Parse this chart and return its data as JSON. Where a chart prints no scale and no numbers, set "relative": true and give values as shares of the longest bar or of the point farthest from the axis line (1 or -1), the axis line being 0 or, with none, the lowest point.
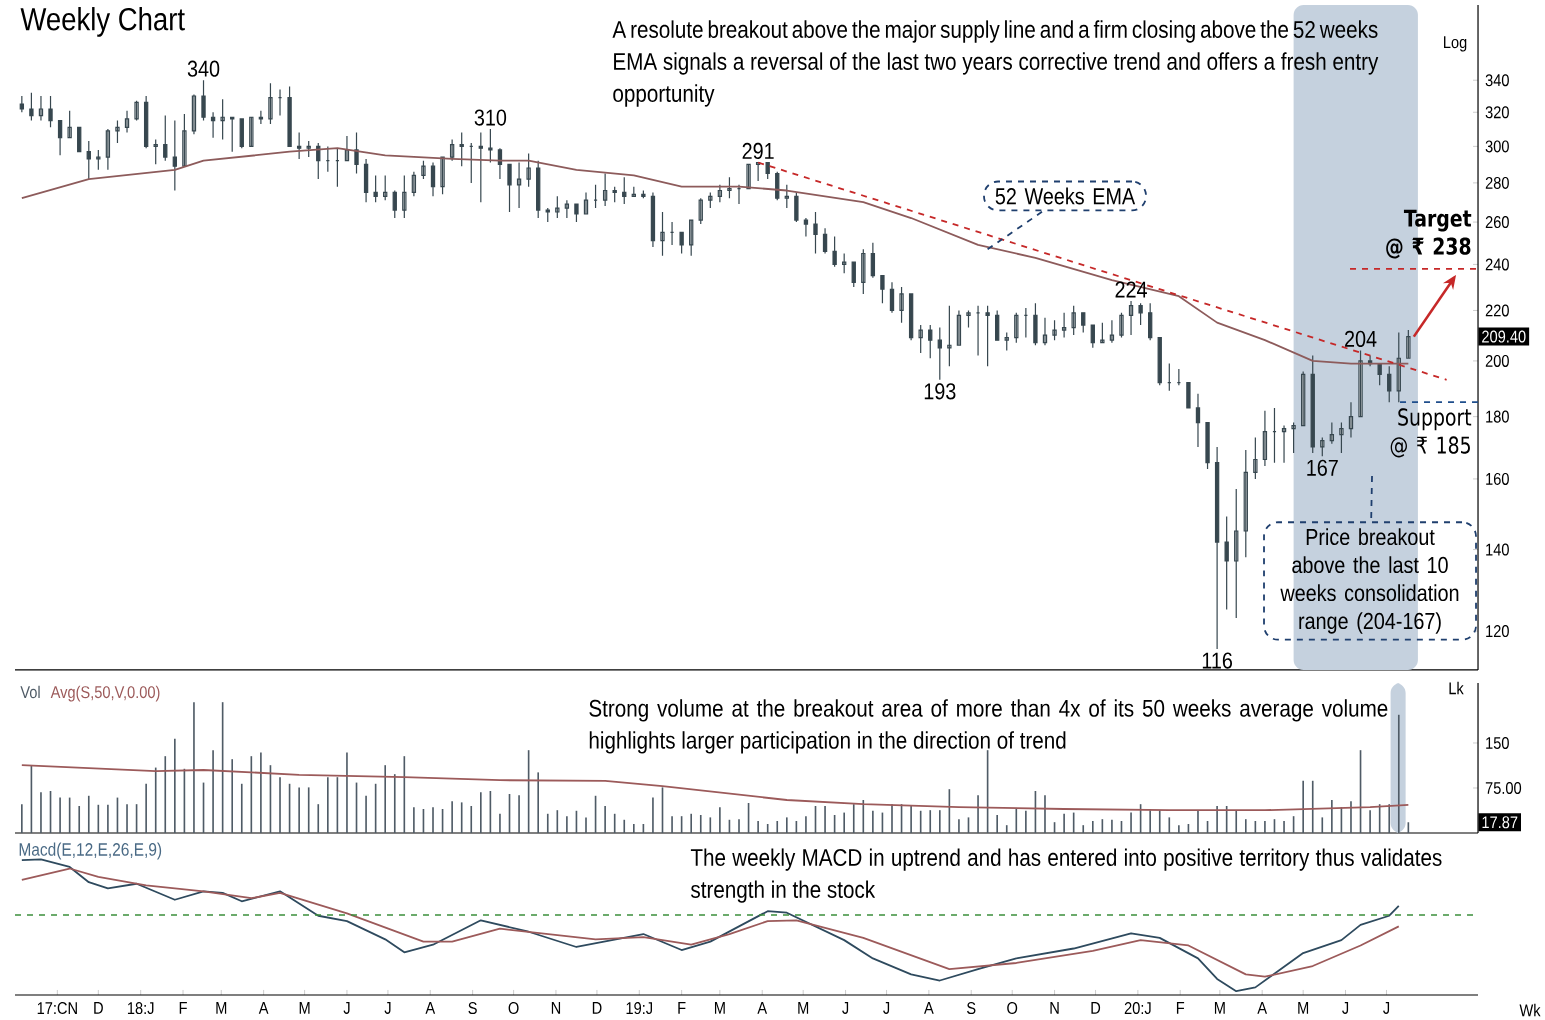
{
  "chart_data": [
    {
      "type": "candlestick",
      "title": "Weekly Chart",
      "log": true,
      "tick_labels": "y",
      "xlim": [
        "2017-10-01",
        "2020-09-06"
      ],
      "ylim": [
        111.5,
        392
      ],
      "yticks": [
        120,
        140,
        160,
        180,
        200,
        220,
        240,
        260,
        280,
        300,
        320,
        340
      ],
      "series": [
        {
          "type": "candlestick",
          "color": "#37474f",
          "x": [
            "2017-10-06",
            "2017-10-13",
            "2017-10-20",
            "2017-10-27",
            "2017-11-03",
            "2017-11-10",
            "2017-11-17",
            "2017-11-24",
            "2017-12-01",
            "2017-12-08",
            "2017-12-15",
            "2017-12-22",
            "2017-12-29",
            "2018-01-05",
            "2018-01-12",
            "2018-01-19",
            "2018-01-26",
            "2018-02-02",
            "2018-02-09",
            "2018-02-16",
            "2018-02-23",
            "2018-03-02",
            "2018-03-09",
            "2018-03-16",
            "2018-03-23",
            "2018-03-30",
            "2018-04-06",
            "2018-04-13",
            "2018-04-20",
            "2018-04-27",
            "2018-05-04",
            "2018-05-11",
            "2018-05-18",
            "2018-05-25",
            "2018-06-01",
            "2018-06-08",
            "2018-06-15",
            "2018-06-22",
            "2018-06-29",
            "2018-07-06",
            "2018-07-13",
            "2018-07-20",
            "2018-07-27",
            "2018-08-03",
            "2018-08-10",
            "2018-08-17",
            "2018-08-24",
            "2018-08-31",
            "2018-09-07",
            "2018-09-14",
            "2018-09-21",
            "2018-09-28",
            "2018-10-05",
            "2018-10-12",
            "2018-10-19",
            "2018-10-26",
            "2018-11-02",
            "2018-11-09",
            "2018-11-16",
            "2018-11-23",
            "2018-11-30",
            "2018-12-07",
            "2018-12-14",
            "2018-12-21",
            "2018-12-28",
            "2019-01-04",
            "2019-01-11",
            "2019-01-18",
            "2019-01-25",
            "2019-02-01",
            "2019-02-08",
            "2019-02-15",
            "2019-02-22",
            "2019-03-01",
            "2019-03-08",
            "2019-03-15",
            "2019-03-22",
            "2019-03-29",
            "2019-04-05",
            "2019-04-12",
            "2019-04-19",
            "2019-04-26",
            "2019-05-03",
            "2019-05-10",
            "2019-05-17",
            "2019-05-24",
            "2019-05-31",
            "2019-06-07",
            "2019-06-14",
            "2019-06-21",
            "2019-06-28",
            "2019-07-05",
            "2019-07-12",
            "2019-07-19",
            "2019-07-26",
            "2019-08-02",
            "2019-08-09",
            "2019-08-16",
            "2019-08-23",
            "2019-08-30",
            "2019-09-06",
            "2019-09-13",
            "2019-09-20",
            "2019-09-27",
            "2019-10-04",
            "2019-10-11",
            "2019-10-18",
            "2019-10-25",
            "2019-11-01",
            "2019-11-08",
            "2019-11-15",
            "2019-11-22",
            "2019-11-29",
            "2019-12-06",
            "2019-12-13",
            "2019-12-20",
            "2019-12-27",
            "2020-01-03",
            "2020-01-10",
            "2020-01-17",
            "2020-01-24",
            "2020-01-31",
            "2020-02-07",
            "2020-02-14",
            "2020-02-21",
            "2020-02-28",
            "2020-03-06",
            "2020-03-13",
            "2020-03-20",
            "2020-03-27",
            "2020-04-03",
            "2020-04-10",
            "2020-04-17",
            "2020-04-24",
            "2020-05-01",
            "2020-05-08",
            "2020-05-15",
            "2020-05-22",
            "2020-05-29",
            "2020-06-05",
            "2020-06-12",
            "2020-06-19",
            "2020-06-26",
            "2020-07-03",
            "2020-07-10",
            "2020-07-17"
          ],
          "ohlc": [
            [
              325,
              330,
              320,
              322
            ],
            [
              322,
              332,
              315,
              318
            ],
            [
              318,
              330,
              315,
              322
            ],
            [
              322,
              330,
              311,
              315
            ],
            [
              315,
              315,
              295,
              305
            ],
            [
              305,
              321,
              305,
              311
            ],
            [
              311,
              311,
              297,
              297
            ],
            [
              297,
              303,
              282,
              293
            ],
            [
              293,
              298,
              287,
              294
            ],
            [
              294,
              310,
              287,
              309
            ],
            [
              309,
              315,
              302,
              311
            ],
            [
              311,
              321,
              308,
              316
            ],
            [
              316,
              327,
              315,
              326
            ],
            [
              326,
              330,
              299,
              300
            ],
            [
              300,
              304,
              290,
              301
            ],
            [
              301,
              318,
              292,
              294
            ],
            [
              294,
              315,
              276,
              289
            ],
            [
              289,
              319,
              289,
              309
            ],
            [
              309,
              331,
              307,
              330
            ],
            [
              330,
              340,
              315,
              317
            ],
            [
              317,
              320,
              305,
              315
            ],
            [
              315,
              328,
              304,
              317
            ],
            [
              317,
              317,
              297,
              316
            ],
            [
              316,
              316,
              299,
              300
            ],
            [
              300,
              317,
              300,
              317
            ],
            [
              317,
              321,
              313,
              316
            ],
            [
              316,
              338,
              313,
              329
            ],
            [
              329,
              334,
              318,
              329
            ],
            [
              329,
              336,
              300,
              300
            ],
            [
              300,
              308,
              293,
              299
            ],
            [
              299,
              303,
              294,
              300
            ],
            [
              300,
              302,
              282,
              292
            ],
            [
              292,
              300,
              286,
              292
            ],
            [
              292,
              299,
              278,
              292
            ],
            [
              292,
              306,
              292,
              298
            ],
            [
              298,
              308,
              285,
              290
            ],
            [
              290,
              293,
              270,
              275
            ],
            [
              275,
              284,
              270,
              273
            ],
            [
              273,
              284,
              271,
              275
            ],
            [
              275,
              276,
              262,
              266
            ],
            [
              266,
              284,
              262,
              275
            ],
            [
              275,
              286,
              273,
              284
            ],
            [
              284,
              292,
              282,
              289
            ],
            [
              289,
              291,
              273,
              278
            ],
            [
              278,
              294,
              274,
              294
            ],
            [
              294,
              304,
              292,
              301
            ],
            [
              301,
              308,
              289,
              300
            ],
            [
              300,
              302,
              280,
              300
            ],
            [
              300,
              308,
              270,
              299
            ],
            [
              299,
              310,
              291,
              298
            ],
            [
              298,
              299,
              282,
              290
            ],
            [
              290,
              290,
              265,
              279
            ],
            [
              279,
              291,
              267,
              282
            ],
            [
              282,
              296,
              278,
              288
            ],
            [
              288,
              292,
              262,
              266
            ],
            [
              266,
              267,
              260,
              265
            ],
            [
              265,
              273,
              262,
              267
            ],
            [
              267,
              271,
              262,
              269
            ],
            [
              269,
              269,
              260,
              264
            ],
            [
              264,
              275,
              264,
              271
            ],
            [
              271,
              279,
              267,
              271
            ],
            [
              271,
              285,
              268,
              276
            ],
            [
              276,
              278,
              270,
              275
            ],
            [
              275,
              283,
              269,
              273
            ],
            [
              273,
              278,
              273,
              274
            ],
            [
              274,
              276,
              272,
              273
            ],
            [
              273,
              275,
              248,
              251
            ],
            [
              251,
              265,
              244,
              255
            ],
            [
              255,
              260,
              249,
              255
            ],
            [
              255,
              255,
              245,
              249
            ],
            [
              249,
              261,
              244,
              261
            ],
            [
              261,
              272,
              259,
              271
            ],
            [
              271,
              275,
              267,
              273
            ],
            [
              273,
              279,
              270,
              276
            ],
            [
              276,
              283,
              272,
              277
            ],
            [
              277,
              279,
              269,
              277
            ],
            [
              277,
              290,
              277,
              290
            ],
            [
              290,
              291,
              281,
              291
            ],
            [
              291,
              291,
              282,
              285
            ],
            [
              285,
              286,
              271,
              272
            ],
            [
              272,
              279,
              267,
              273
            ],
            [
              273,
              275,
              260,
              261
            ],
            [
              261,
              262,
              253,
              259
            ],
            [
              259,
              265,
              245,
              254
            ],
            [
              254,
              257,
              245,
              246
            ],
            [
              246,
              253,
              239,
              240
            ],
            [
              240,
              245,
              236,
              241
            ],
            [
              241,
              241,
              230,
              232
            ],
            [
              232,
              247,
              227,
              245
            ],
            [
              245,
              250,
              234,
              235
            ],
            [
              235,
              235,
              223,
              229
            ],
            [
              229,
              232,
              219,
              220
            ],
            [
              220,
              230,
              215,
              227
            ],
            [
              227,
              227,
              208,
              209
            ],
            [
              209,
              214,
              203,
              212
            ],
            [
              212,
              214,
              201,
              208
            ],
            [
              208,
              213,
              193,
              205
            ],
            [
              205,
              222,
              198,
              206
            ],
            [
              206,
              220,
              206,
              218
            ],
            [
              218,
              220,
              213,
              219
            ],
            [
              219,
              222,
              202,
              219
            ],
            [
              219,
              222,
              198,
              218
            ],
            [
              218,
              220,
              208,
              208
            ],
            [
              208,
              211,
              204,
              209
            ],
            [
              209,
              219,
              207,
              218
            ],
            [
              218,
              221,
              209,
              218
            ],
            [
              218,
              223,
              206,
              207
            ],
            [
              207,
              217,
              206,
              210
            ],
            [
              210,
              216,
              208,
              212
            ],
            [
              212,
              219,
              209,
              213
            ],
            [
              213,
              222,
              210,
              219
            ],
            [
              219,
              219,
              211,
              214
            ],
            [
              214,
              214,
              205,
              207
            ],
            [
              207,
              215,
              207,
              208
            ],
            [
              208,
              216,
              207,
              210
            ],
            [
              210,
              219,
              209,
              218
            ],
            [
              218,
              224,
              210,
              222
            ],
            [
              222,
              223,
              214,
              219
            ],
            [
              219,
              223,
              208,
              209
            ],
            [
              209,
              209,
              191,
              192
            ],
            [
              192,
              199,
              189,
              192
            ],
            [
              192,
              197,
              191,
              192
            ],
            [
              192,
              192,
              183,
              183
            ],
            [
              183,
              188,
              170,
              178
            ],
            [
              178,
              178,
              163,
              165
            ],
            [
              165,
              170,
              116,
              142
            ],
            [
              142,
              149,
              125,
              137
            ],
            [
              137,
              157,
              123,
              145
            ],
            [
              145,
              169,
              138,
              162
            ],
            [
              162,
              173,
              160,
              166
            ],
            [
              166,
              182,
              164,
              175
            ],
            [
              175,
              183,
              165,
              175
            ],
            [
              175,
              177,
              165,
              176
            ],
            [
              176,
              178,
              168,
              177
            ],
            [
              177,
              196,
              177,
              195
            ],
            [
              195,
              202,
              168,
              170
            ],
            [
              170,
              173,
              167,
              172
            ],
            [
              172,
              178,
              171,
              174
            ],
            [
              174,
              178,
              168,
              176
            ],
            [
              176,
              185,
              173,
              180
            ],
            [
              180,
              204,
              180,
              200
            ],
            [
              200,
              202,
              198,
              199
            ],
            [
              199,
              199,
              191,
              195
            ],
            [
              195,
              198,
              185,
              189
            ],
            [
              189,
              211,
              185,
              201
            ],
            [
              201,
              212,
              201,
              209.4
            ]
          ]
        },
        {
          "type": "line",
          "color": "#8d5b5b",
          "x": [
            "2017-10-06",
            "2017-11-24",
            "2018-01-26",
            "2018-02-16",
            "2018-04-20",
            "2018-05-25",
            "2018-06-29",
            "2018-08-17",
            "2018-09-21",
            "2018-10-12",
            "2018-11-16",
            "2018-12-28",
            "2019-02-01",
            "2019-03-15",
            "2019-04-19",
            "2019-06-14",
            "2019-07-19",
            "2019-09-06",
            "2019-10-18",
            "2019-12-13",
            "2020-01-31",
            "2020-02-28",
            "2020-04-03",
            "2020-05-08",
            "2020-06-05",
            "2020-07-17"
          ],
          "values": [
            272,
            282,
            287,
            292,
            297,
            299,
            295,
            293,
            292,
            292,
            287,
            284,
            278,
            278,
            276,
            270,
            262,
            249,
            243,
            233,
            226,
            215,
            208,
            200,
            199,
            199
          ]
        },
        {
          "type": "line",
          "color": "#c62828",
          "line_style": "dashed",
          "x": [
            "2019-03-29",
            "2020-08-14"
          ],
          "values": [
            291,
            193
          ]
        }
      ],
      "ref_lines": [
        {
          "axis": "y",
          "value": 238,
          "label": "Target @ ₹ 238",
          "color": "#c62828",
          "line_style": "dashed"
        },
        {
          "axis": "y",
          "value": 185,
          "label": "Support @ ₹ 185",
          "color": "#1f4e8c",
          "line_style": "dashed"
        }
      ],
      "bands": [
        {
          "axis": "x",
          "from": "2020-04-24",
          "to": "2020-07-24",
          "color": "#c5d1de"
        }
      ],
      "annotations": [
        "A resolute breakout above the major supply line and a firm closing above the 52 weeks EMA signals a reversal of the last two years corrective trend and offers a fresh entry opportunity",
        {
          "text": "340",
          "x": "2018-02-16",
          "y": 340
        },
        {
          "text": "310",
          "x": "2018-09-14",
          "y": 310
        },
        {
          "text": "291",
          "x": "2019-03-29",
          "y": 291
        },
        {
          "text": "193",
          "x": "2019-08-09",
          "y": 193
        },
        {
          "text": "224",
          "x": "2019-12-27",
          "y": 224
        },
        {
          "text": "116",
          "x": "2020-02-28",
          "y": 116
        },
        {
          "text": "204",
          "x": "2020-06-12",
          "y": 204
        },
        {
          "text": "167",
          "x": "2020-05-15",
          "y": 167
        },
        {
          "text": "52 Weeks EMA",
          "x": "2019-09-13",
          "y": 247
        },
        "Price breakout above the last 10 weeks consolidation range (204-167)",
        "209.40",
        "Log"
      ]
    },
    {
      "type": "bar",
      "tick_labels": "y",
      "legend": "top left",
      "ylabel": "Lk",
      "xlim": [
        "2017-10-01",
        "2020-09-06"
      ],
      "ylim": [
        0,
        250
      ],
      "yticks": [
        {
          "value": 75,
          "label": "75.00"
        },
        150
      ],
      "x": [
        "2017-10-06",
        "2017-10-13",
        "2017-10-20",
        "2017-10-27",
        "2017-11-03",
        "2017-11-10",
        "2017-11-17",
        "2017-11-24",
        "2017-12-01",
        "2017-12-08",
        "2017-12-15",
        "2017-12-22",
        "2017-12-29",
        "2018-01-05",
        "2018-01-12",
        "2018-01-19",
        "2018-01-26",
        "2018-02-02",
        "2018-02-09",
        "2018-02-16",
        "2018-02-23",
        "2018-03-02",
        "2018-03-09",
        "2018-03-16",
        "2018-03-23",
        "2018-03-30",
        "2018-04-06",
        "2018-04-13",
        "2018-04-20",
        "2018-04-27",
        "2018-05-04",
        "2018-05-11",
        "2018-05-18",
        "2018-05-25",
        "2018-06-01",
        "2018-06-08",
        "2018-06-15",
        "2018-06-22",
        "2018-06-29",
        "2018-07-06",
        "2018-07-13",
        "2018-07-20",
        "2018-07-27",
        "2018-08-03",
        "2018-08-10",
        "2018-08-17",
        "2018-08-24",
        "2018-08-31",
        "2018-09-07",
        "2018-09-14",
        "2018-09-21",
        "2018-09-28",
        "2018-10-05",
        "2018-10-12",
        "2018-10-19",
        "2018-10-26",
        "2018-11-02",
        "2018-11-09",
        "2018-11-16",
        "2018-11-23",
        "2018-11-30",
        "2018-12-07",
        "2018-12-14",
        "2018-12-21",
        "2018-12-28",
        "2019-01-04",
        "2019-01-11",
        "2019-01-18",
        "2019-01-25",
        "2019-02-01",
        "2019-02-08",
        "2019-02-15",
        "2019-02-22",
        "2019-03-01",
        "2019-03-08",
        "2019-03-15",
        "2019-03-22",
        "2019-03-29",
        "2019-04-05",
        "2019-04-12",
        "2019-04-19",
        "2019-04-26",
        "2019-05-03",
        "2019-05-10",
        "2019-05-17",
        "2019-05-24",
        "2019-05-31",
        "2019-06-07",
        "2019-06-14",
        "2019-06-21",
        "2019-06-28",
        "2019-07-05",
        "2019-07-12",
        "2019-07-19",
        "2019-07-26",
        "2019-08-02",
        "2019-08-09",
        "2019-08-16",
        "2019-08-23",
        "2019-08-30",
        "2019-09-06",
        "2019-09-13",
        "2019-09-20",
        "2019-09-27",
        "2019-10-04",
        "2019-10-11",
        "2019-10-18",
        "2019-10-25",
        "2019-11-01",
        "2019-11-08",
        "2019-11-15",
        "2019-11-22",
        "2019-11-29",
        "2019-12-06",
        "2019-12-13",
        "2019-12-20",
        "2019-12-27",
        "2020-01-03",
        "2020-01-10",
        "2020-01-17",
        "2020-01-24",
        "2020-01-31",
        "2020-02-07",
        "2020-02-14",
        "2020-02-21",
        "2020-02-28",
        "2020-03-06",
        "2020-03-13",
        "2020-03-20",
        "2020-03-27",
        "2020-04-03",
        "2020-04-10",
        "2020-04-17",
        "2020-04-24",
        "2020-05-01",
        "2020-05-08",
        "2020-05-15",
        "2020-05-22",
        "2020-05-29",
        "2020-06-05",
        "2020-06-12",
        "2020-06-19",
        "2020-06-26",
        "2020-07-03",
        "2020-07-10",
        "2020-07-17"
      ],
      "series": [
        {
          "name": "Vol",
          "color": "#4f5b66",
          "values": [
            48,
            113,
            68,
            70,
            59,
            59,
            45,
            62,
            47,
            47,
            59,
            48,
            48,
            82,
            109,
            128,
            157,
            107,
            218,
            84,
            138,
            218,
            123,
            82,
            128,
            134,
            113,
            93,
            82,
            76,
            76,
            48,
            93,
            93,
            134,
            84,
            62,
            82,
            113,
            98,
            128,
            43,
            40,
            43,
            40,
            53,
            51,
            45,
            68,
            70,
            32,
            65,
            63,
            138,
            101,
            32,
            38,
            28,
            37,
            26,
            62,
            45,
            32,
            22,
            15,
            15,
            59,
            76,
            28,
            28,
            32,
            30,
            26,
            43,
            22,
            23,
            50,
            20,
            15,
            20,
            26,
            20,
            28,
            45,
            45,
            30,
            34,
            48,
            55,
            37,
            34,
            48,
            48,
            45,
            37,
            38,
            38,
            73,
            23,
            26,
            63,
            138,
            30,
            13,
            40,
            37,
            70,
            63,
            18,
            32,
            34,
            13,
            20,
            23,
            22,
            20,
            34,
            48,
            38,
            38,
            26,
            13,
            15,
            37,
            20,
            45,
            45,
            37,
            23,
            20,
            20,
            23,
            20,
            28,
            87,
            87,
            26,
            55,
            43,
            53,
            138,
            38,
            48,
            48,
            197,
            17.87
          ]
        },
        {
          "name": "Avg(S,50,V,0.00)",
          "type": "line",
          "color": "#9c5a5a",
          "x": [
            "2017-10-06",
            "2018-01-12",
            "2018-02-16",
            "2018-04-27",
            "2018-07-13",
            "2018-09-21",
            "2018-12-07",
            "2019-01-18",
            "2019-04-19",
            "2019-06-14",
            "2019-08-23",
            "2019-11-08",
            "2020-01-24",
            "2020-04-03",
            "2020-06-19",
            "2020-07-17"
          ],
          "values": [
            113,
            103,
            105,
            97,
            93,
            88,
            87,
            78,
            55,
            48,
            43,
            40,
            38,
            38,
            43,
            47
          ]
        }
      ],
      "bands": [
        {
          "axis": "x",
          "from": "2020-07-04",
          "to": "2020-07-15",
          "color": "#c5d1de"
        }
      ],
      "annotations": [
        {
          "text": "Strong volume at the breakout area of more than 4x of its 50 weeks average volume highlights larger participation in the direction of trend",
          "x": "2020-07-10",
          "y": 197
        },
        "17.87"
      ]
    },
    {
      "type": "line",
      "title": "Macd(E,12,E,26,E,9)",
      "relative": true,
      "tick_labels": "x",
      "xlim": [
        "2017-10-01",
        "2020-09-06"
      ],
      "xticks": [
        {
          "value": "2017-11-01",
          "label": "17:CN"
        },
        {
          "value": "2017-12-01",
          "label": "D"
        },
        {
          "value": "2018-01-01",
          "label": "18:J"
        },
        {
          "value": "2018-02-01",
          "label": "F"
        },
        {
          "value": "2018-03-01",
          "label": "M"
        },
        {
          "value": "2018-04-01",
          "label": "A"
        },
        {
          "value": "2018-05-01",
          "label": "M"
        },
        {
          "value": "2018-06-01",
          "label": "J"
        },
        {
          "value": "2018-07-01",
          "label": "J"
        },
        {
          "value": "2018-08-01",
          "label": "A"
        },
        {
          "value": "2018-09-01",
          "label": "S"
        },
        {
          "value": "2018-10-01",
          "label": "O"
        },
        {
          "value": "2018-11-01",
          "label": "N"
        },
        {
          "value": "2018-12-01",
          "label": "D"
        },
        {
          "value": "2019-01-01",
          "label": "19:J"
        },
        {
          "value": "2019-02-01",
          "label": "F"
        },
        {
          "value": "2019-03-01",
          "label": "M"
        },
        {
          "value": "2019-04-01",
          "label": "A"
        },
        {
          "value": "2019-05-01",
          "label": "M"
        },
        {
          "value": "2019-06-01",
          "label": "J"
        },
        {
          "value": "2019-07-01",
          "label": "J"
        },
        {
          "value": "2019-08-01",
          "label": "A"
        },
        {
          "value": "2019-09-01",
          "label": "S"
        },
        {
          "value": "2019-10-01",
          "label": "O"
        },
        {
          "value": "2019-11-01",
          "label": "N"
        },
        {
          "value": "2019-12-01",
          "label": "D"
        },
        {
          "value": "2020-01-01",
          "label": "20:J"
        },
        {
          "value": "2020-02-01",
          "label": "F"
        },
        {
          "value": "2020-03-01",
          "label": "M"
        },
        {
          "value": "2020-04-01",
          "label": "A"
        },
        {
          "value": "2020-05-01",
          "label": "M"
        },
        {
          "value": "2020-06-01",
          "label": "J"
        },
        {
          "value": "2020-07-01",
          "label": "J"
        }
      ],
      "series": [
        {
          "color": "#2e4a5e",
          "x": [
            "2017-10-06",
            "2017-10-20",
            "2017-11-10",
            "2017-11-24",
            "2017-12-08",
            "2017-12-29",
            "2018-01-26",
            "2018-02-16",
            "2018-03-02",
            "2018-03-16",
            "2018-04-13",
            "2018-05-11",
            "2018-06-01",
            "2018-06-29",
            "2018-07-13",
            "2018-08-03",
            "2018-09-07",
            "2018-10-12",
            "2018-11-16",
            "2019-01-04",
            "2019-02-01",
            "2019-02-22",
            "2019-03-15",
            "2019-04-05",
            "2019-04-19",
            "2019-05-31",
            "2019-06-21",
            "2019-07-19",
            "2019-08-09",
            "2019-09-06",
            "2019-10-04",
            "2019-11-15",
            "2019-12-27",
            "2020-01-17",
            "2020-02-14",
            "2020-02-28",
            "2020-03-13",
            "2020-03-27",
            "2020-05-01",
            "2020-05-29",
            "2020-06-12",
            "2020-07-03",
            "2020-07-10"
          ],
          "values": [
            0.72,
            0.73,
            0.63,
            0.43,
            0.35,
            0.41,
            0.2,
            0.31,
            0.29,
            0.18,
            0.31,
            -0.01,
            -0.08,
            -0.32,
            -0.49,
            -0.39,
            -0.07,
            -0.22,
            -0.42,
            -0.25,
            -0.46,
            -0.35,
            -0.15,
            0.05,
            0.03,
            -0.33,
            -0.57,
            -0.78,
            -0.86,
            -0.71,
            -0.57,
            -0.44,
            -0.24,
            -0.3,
            -0.57,
            -0.84,
            -1.0,
            -0.95,
            -0.5,
            -0.33,
            -0.13,
            -0.01,
            0.12
          ]
        },
        {
          "color": "#9c5a5a",
          "x": [
            "2017-10-06",
            "2017-11-10",
            "2017-12-01",
            "2018-01-05",
            "2018-02-16",
            "2018-03-23",
            "2018-04-13",
            "2018-06-01",
            "2018-07-27",
            "2018-08-17",
            "2018-09-21",
            "2018-10-26",
            "2018-11-30",
            "2019-01-04",
            "2019-02-08",
            "2019-03-08",
            "2019-04-05",
            "2019-04-26",
            "2019-06-14",
            "2019-08-16",
            "2019-10-04",
            "2019-11-29",
            "2020-01-03",
            "2020-02-07",
            "2020-03-20",
            "2020-04-03",
            "2020-05-08",
            "2020-06-12",
            "2020-07-10"
          ],
          "values": [
            0.46,
            0.61,
            0.5,
            0.39,
            0.31,
            0.22,
            0.29,
            0.02,
            -0.35,
            -0.35,
            -0.18,
            -0.25,
            -0.32,
            -0.29,
            -0.39,
            -0.25,
            -0.08,
            -0.07,
            -0.3,
            -0.71,
            -0.63,
            -0.47,
            -0.33,
            -0.4,
            -0.78,
            -0.81,
            -0.67,
            -0.4,
            -0.15
          ]
        }
      ],
      "ref_lines": [
        {
          "axis": "y",
          "value": 0,
          "color": "#3b8f3b",
          "line_style": "dashed"
        }
      ],
      "annotations": [
        "The weekly MACD in uptrend and has entered into positive territory thus validates strength in the stock",
        "Wk"
      ]
    }
  ]
}
